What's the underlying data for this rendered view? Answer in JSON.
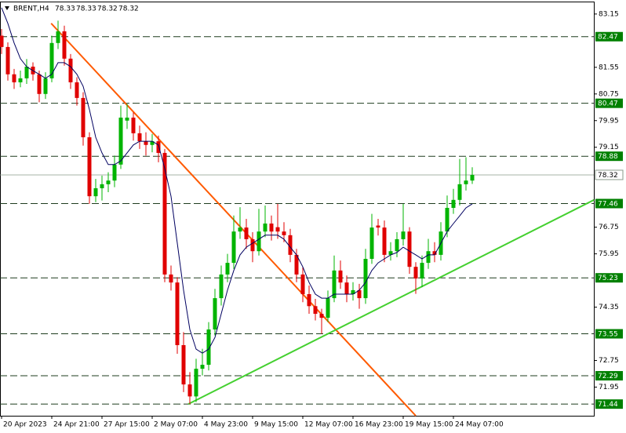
{
  "chart_data": {
    "type": "candlestick",
    "title": "BRENT,H4",
    "header_values": [
      78.33,
      78.33,
      78.32,
      78.32
    ],
    "categories": [
      "20 Apr 2023",
      null,
      null,
      null,
      null,
      null,
      null,
      null,
      "24 Apr 21:00",
      null,
      null,
      null,
      null,
      null,
      null,
      null,
      "27 Apr 15:00",
      null,
      null,
      null,
      null,
      null,
      null,
      null,
      "2 May 07:00",
      null,
      null,
      null,
      null,
      null,
      null,
      null,
      "4 May 23:00",
      null,
      null,
      null,
      null,
      null,
      null,
      null,
      "9 May 15:00",
      null,
      null,
      null,
      null,
      null,
      null,
      null,
      "12 May 07:00",
      null,
      null,
      null,
      null,
      null,
      null,
      null,
      "16 May 23:00",
      null,
      null,
      null,
      null,
      null,
      null,
      null,
      "19 May 15:00",
      null,
      null,
      null,
      null,
      null,
      null,
      null,
      "24 May 07:00",
      null,
      null,
      null
    ],
    "candles": [
      [
        82.5,
        82.7,
        81.95,
        82.16
      ],
      [
        82.16,
        82.3,
        81.15,
        81.34
      ],
      [
        81.34,
        81.5,
        80.9,
        81.1
      ],
      [
        81.1,
        81.45,
        80.95,
        81.22
      ],
      [
        81.22,
        81.8,
        81.05,
        81.57
      ],
      [
        81.57,
        81.7,
        81.15,
        81.34
      ],
      [
        81.34,
        81.45,
        80.5,
        80.75
      ],
      [
        80.75,
        81.4,
        80.6,
        81.22
      ],
      [
        81.22,
        82.5,
        81.1,
        82.28
      ],
      [
        82.28,
        82.95,
        82.1,
        82.63
      ],
      [
        82.63,
        82.8,
        81.6,
        81.81
      ],
      [
        81.81,
        81.95,
        80.9,
        81.1
      ],
      [
        81.1,
        81.25,
        80.4,
        80.63
      ],
      [
        80.63,
        80.8,
        79.2,
        79.45
      ],
      [
        79.45,
        79.6,
        77.45,
        77.68
      ],
      [
        77.68,
        78.2,
        77.5,
        77.92
      ],
      [
        77.92,
        78.3,
        77.55,
        78.04
      ],
      [
        78.04,
        78.4,
        77.8,
        78.15
      ],
      [
        78.15,
        78.9,
        77.95,
        78.63
      ],
      [
        78.63,
        80.4,
        78.5,
        80.04
      ],
      [
        79.95,
        80.45,
        79.7,
        80.04
      ],
      [
        80.04,
        80.2,
        79.35,
        79.57
      ],
      [
        79.57,
        79.8,
        79.1,
        79.33
      ],
      [
        79.33,
        79.6,
        78.9,
        79.22
      ],
      [
        79.22,
        79.55,
        79.0,
        79.33
      ],
      [
        79.33,
        79.5,
        78.7,
        78.98
      ],
      [
        78.98,
        79.1,
        75.1,
        75.33
      ],
      [
        75.33,
        75.6,
        74.85,
        75.09
      ],
      [
        75.09,
        75.25,
        72.95,
        73.21
      ],
      [
        73.21,
        73.6,
        71.8,
        72.03
      ],
      [
        72.03,
        72.4,
        71.44,
        71.67
      ],
      [
        71.67,
        72.8,
        71.5,
        72.5
      ],
      [
        72.5,
        73.1,
        72.3,
        72.62
      ],
      [
        72.62,
        73.9,
        72.45,
        73.68
      ],
      [
        73.68,
        74.9,
        73.5,
        74.62
      ],
      [
        74.62,
        75.6,
        74.4,
        75.33
      ],
      [
        75.33,
        75.95,
        75.1,
        75.68
      ],
      [
        75.68,
        77.1,
        75.5,
        76.62
      ],
      [
        76.62,
        77.35,
        76.4,
        76.74
      ],
      [
        76.74,
        77.0,
        76.1,
        76.39
      ],
      [
        76.39,
        76.6,
        75.7,
        76.03
      ],
      [
        76.03,
        77.3,
        75.9,
        76.62
      ],
      [
        76.62,
        77.4,
        76.45,
        76.86
      ],
      [
        76.86,
        77.1,
        76.35,
        76.62
      ],
      [
        76.75,
        77.45,
        76.4,
        76.62
      ],
      [
        76.62,
        76.9,
        76.3,
        76.51
      ],
      [
        76.51,
        76.7,
        75.7,
        75.92
      ],
      [
        75.92,
        76.1,
        75.1,
        75.33
      ],
      [
        75.33,
        75.55,
        74.5,
        74.74
      ],
      [
        74.74,
        75.0,
        74.15,
        74.38
      ],
      [
        74.38,
        74.6,
        73.95,
        74.15
      ],
      [
        74.15,
        74.3,
        73.55,
        74.03
      ],
      [
        74.03,
        74.85,
        73.9,
        74.62
      ],
      [
        74.62,
        75.9,
        74.5,
        75.45
      ],
      [
        75.45,
        75.75,
        74.9,
        75.09
      ],
      [
        75.09,
        75.3,
        74.5,
        74.74
      ],
      [
        74.74,
        75.1,
        74.55,
        74.86
      ],
      [
        74.86,
        75.05,
        74.3,
        74.62
      ],
      [
        74.62,
        76.1,
        74.45,
        75.8
      ],
      [
        75.8,
        77.15,
        75.65,
        76.74
      ],
      [
        76.8,
        77.0,
        76.5,
        76.74
      ],
      [
        76.74,
        76.95,
        75.7,
        75.92
      ],
      [
        75.92,
        76.3,
        75.75,
        76.03
      ],
      [
        76.03,
        76.6,
        75.85,
        76.39
      ],
      [
        76.39,
        77.45,
        76.2,
        76.62
      ],
      [
        76.62,
        76.75,
        75.35,
        75.56
      ],
      [
        75.56,
        75.7,
        74.75,
        75.21
      ],
      [
        75.21,
        75.9,
        74.95,
        75.68
      ],
      [
        75.68,
        76.4,
        75.5,
        76.03
      ],
      [
        76.03,
        76.3,
        75.7,
        75.92
      ],
      [
        75.92,
        76.9,
        75.75,
        76.62
      ],
      [
        76.62,
        77.7,
        76.45,
        77.33
      ],
      [
        77.33,
        77.9,
        77.15,
        77.57
      ],
      [
        77.57,
        78.8,
        77.4,
        78.04
      ],
      [
        78.04,
        78.85,
        77.85,
        78.15
      ],
      [
        78.15,
        78.55,
        78.05,
        78.32
      ]
    ],
    "up_color": "#00b400",
    "down_color": "#e00000",
    "series": [
      {
        "color": "#000060",
        "values": [
          83.34,
          82.87,
          82.28,
          81.81,
          81.57,
          81.45,
          81.34,
          81.22,
          81.34,
          81.69,
          81.69,
          81.57,
          81.34,
          80.98,
          80.28,
          79.45,
          78.98,
          78.63,
          78.63,
          78.74,
          78.98,
          79.22,
          79.33,
          79.33,
          79.33,
          79.22,
          78.51,
          77.68,
          76.27,
          74.86,
          73.68,
          73.09,
          72.97,
          73.09,
          73.44,
          74.15,
          74.86,
          75.45,
          75.92,
          76.15,
          76.27,
          76.39,
          76.51,
          76.51,
          76.51,
          76.39,
          76.15,
          75.92,
          75.56,
          75.09,
          74.74,
          74.62,
          74.62,
          74.74,
          74.74,
          74.74,
          74.74,
          74.86,
          75.09,
          75.45,
          75.68,
          75.8,
          75.92,
          75.99,
          76.15,
          76.03,
          75.92,
          75.8,
          75.92,
          75.92,
          76.27,
          76.62,
          76.86,
          77.09,
          77.33,
          77.45
        ]
      }
    ],
    "xlim": [
      -0.25,
      94.375
    ],
    "ylim": [
      71.09,
      83.5
    ],
    "yticks": [
      83.15,
      81.55,
      80.75,
      79.95,
      79.15,
      76.75,
      75.95,
      74.35,
      72.75,
      71.95
    ],
    "levels": [
      82.47,
      80.47,
      78.88,
      77.46,
      75.23,
      73.55,
      72.29,
      71.44
    ],
    "level_color": "#1e3c1e",
    "level_label_color": "#008000",
    "last_price": 78.32,
    "last_price_color": "#8a9a8a",
    "trendlines": [
      {
        "color": "#ff5a00",
        "points": [
          [
            7.9,
            82.87
          ],
          [
            66,
            71.09
          ]
        ]
      },
      {
        "color": "#44d030",
        "points": [
          [
            29.75,
            71.44
          ],
          [
            94.4,
            77.57
          ]
        ]
      }
    ]
  }
}
